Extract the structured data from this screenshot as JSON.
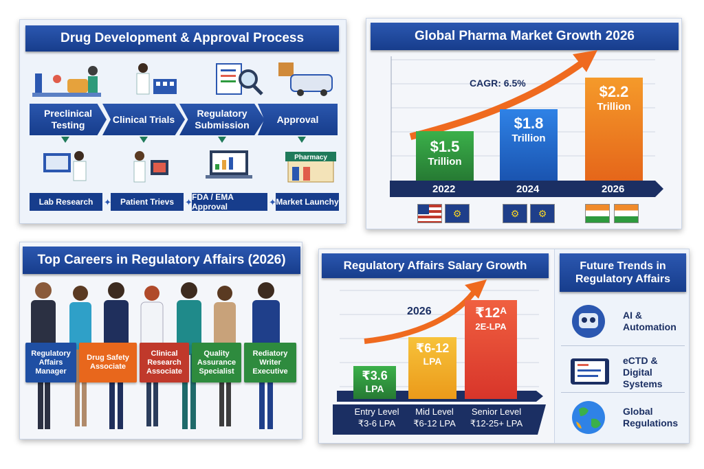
{
  "process": {
    "title": "Drug Development & Approval Process",
    "stages": [
      "Preclinical Testing",
      "Clinical Trials",
      "Regulatory Submission",
      "Approval"
    ],
    "steps": [
      "Lab Research",
      "Patient Trievs",
      "FDA / EMA Approval",
      "Market Launchy"
    ],
    "pharmacy_sign": "Pharmacy"
  },
  "market": {
    "title": "Global Pharma Market Growth 2026",
    "cagr": "CAGR: 6.5%",
    "bars": [
      {
        "value": "$1.5",
        "unit": "Trillion",
        "year": "2022",
        "color": "#2e9a3e"
      },
      {
        "value": "$1.8",
        "unit": "Trillion",
        "year": "2024",
        "color": "#1f6ad1"
      },
      {
        "value": "$2.2",
        "unit": "Trillion",
        "year": "2026",
        "color": "#f07a1c"
      }
    ]
  },
  "careers": {
    "title": "Top Careers in Regulatory Affairs (2026)",
    "roles": [
      {
        "label": "Regulatory Affairs Manager",
        "color": "#1f4fa3"
      },
      {
        "label": "Drug Safety Associate",
        "color": "#e8671c"
      },
      {
        "label": "Clinical Research Associate",
        "color": "#c0392b"
      },
      {
        "label": "Quality Assurance Specialist",
        "color": "#2e8b3e"
      },
      {
        "label": "Rediatory Writer Executive",
        "color": "#2e8b3e"
      }
    ]
  },
  "salary": {
    "title": "Regulatory Affairs Salary Growth",
    "year": "2026",
    "bars": [
      {
        "value": "₹3.6",
        "unit": "LPA",
        "color": "#2e9a3e",
        "level": "Entry Level",
        "range": "₹3-6 LPA"
      },
      {
        "value": "₹6-12",
        "unit": "LPA",
        "color": "#f0a81c",
        "level": "Mid Level",
        "range": "₹6-12 LPA"
      },
      {
        "value": "₹12ᴬ",
        "unit": "2E-LPA",
        "color": "#e0452b",
        "level": "Senior Level",
        "range": "₹12-25+ LPA"
      }
    ]
  },
  "trends": {
    "title": "Future Trends in Regulatory Affairs",
    "items": [
      {
        "label": "AI & Automation"
      },
      {
        "label": "eCTD & Digital Systems"
      },
      {
        "label": "Global Regulations"
      }
    ]
  }
}
